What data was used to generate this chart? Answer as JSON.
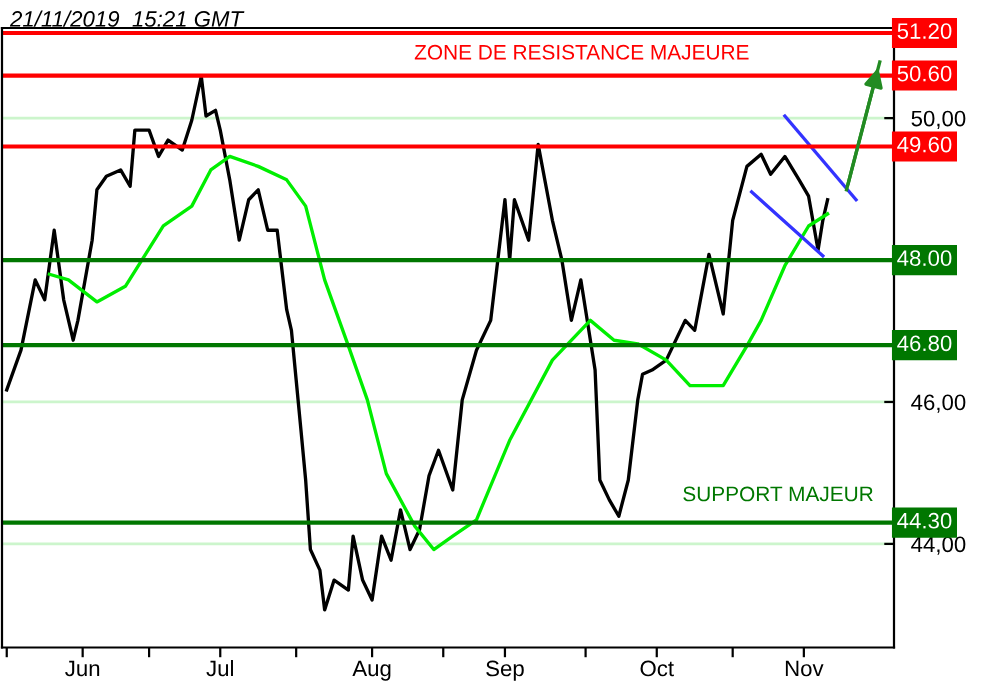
{
  "chart_data": {
    "type": "line",
    "title": "21/11/2019  15:21 GMT",
    "x": [
      "2019-06-01",
      "2019-06-04",
      "2019-06-07",
      "2019-06-09",
      "2019-06-11",
      "2019-06-13",
      "2019-06-15",
      "2019-06-16",
      "2019-06-19",
      "2019-06-20",
      "2019-06-22",
      "2019-06-25",
      "2019-06-27",
      "2019-06-28",
      "2019-07-01",
      "2019-07-03",
      "2019-07-05",
      "2019-07-08",
      "2019-07-10",
      "2019-07-12",
      "2019-07-13",
      "2019-07-15",
      "2019-07-16",
      "2019-07-18",
      "2019-07-20",
      "2019-07-22",
      "2019-07-24",
      "2019-07-26",
      "2019-07-28",
      "2019-07-30",
      "2019-07-31",
      "2019-08-01",
      "2019-08-02",
      "2019-08-03",
      "2019-08-04",
      "2019-08-06",
      "2019-08-07",
      "2019-08-09",
      "2019-08-12",
      "2019-08-13",
      "2019-08-15",
      "2019-08-17",
      "2019-08-19",
      "2019-08-21",
      "2019-08-23",
      "2019-08-25",
      "2019-08-27",
      "2019-08-29",
      "2019-08-31",
      "2019-09-03",
      "2019-09-05",
      "2019-09-08",
      "2019-09-11",
      "2019-09-14",
      "2019-09-15",
      "2019-09-16",
      "2019-09-19",
      "2019-09-21",
      "2019-09-24",
      "2019-09-26",
      "2019-09-28",
      "2019-09-30",
      "2019-10-03",
      "2019-10-04",
      "2019-10-06",
      "2019-10-08",
      "2019-10-10",
      "2019-10-12",
      "2019-10-13",
      "2019-10-15",
      "2019-10-18",
      "2019-10-22",
      "2019-10-24",
      "2019-10-27",
      "2019-10-30",
      "2019-11-01",
      "2019-11-04",
      "2019-11-07",
      "2019-11-09",
      "2019-11-12",
      "2019-11-15",
      "2019-11-17",
      "2019-11-19",
      "2019-11-20",
      "2019-11-21"
    ],
    "series": [
      {
        "color": "#000000",
        "values": [
          46.17,
          46.73,
          47.72,
          47.44,
          48.42,
          47.44,
          46.87,
          47.15,
          48.28,
          48.99,
          49.18,
          49.27,
          49.04,
          49.83,
          49.83,
          49.46,
          49.69,
          49.55,
          49.97,
          50.59,
          50.03,
          50.11,
          49.83,
          49.13,
          48.28,
          48.85,
          48.99,
          48.42,
          48.42,
          47.3,
          47.01,
          46.31,
          45.61,
          44.9,
          43.92,
          43.63,
          43.07,
          43.49,
          43.35,
          44.11,
          43.49,
          43.21,
          44.11,
          43.77,
          44.48,
          43.92,
          44.2,
          44.96,
          45.32,
          44.76,
          46.03,
          46.73,
          47.15,
          48.85,
          48.0,
          48.85,
          48.28,
          49.63,
          48.56,
          48.0,
          47.15,
          47.72,
          46.45,
          44.9,
          44.62,
          44.39,
          44.9,
          46.03,
          46.39,
          46.45,
          46.59,
          47.15,
          47.01,
          48.08,
          47.24,
          48.56,
          49.32,
          49.49,
          49.21,
          49.46,
          49.13,
          48.9,
          48.14,
          48.56,
          48.85
        ]
      },
      {
        "color": "#00ee00",
        "x": [
          "2019-06-10",
          "2019-06-14",
          "2019-06-20",
          "2019-06-26",
          "2019-07-04",
          "2019-07-10",
          "2019-07-14",
          "2019-07-18",
          "2019-07-24",
          "2019-07-30",
          "2019-08-03",
          "2019-08-07",
          "2019-08-12",
          "2019-08-16",
          "2019-08-20",
          "2019-08-26",
          "2019-08-30",
          "2019-09-03",
          "2019-09-08",
          "2019-09-15",
          "2019-09-24",
          "2019-10-02",
          "2019-10-07",
          "2019-10-12",
          "2019-10-18",
          "2019-10-23",
          "2019-10-30",
          "2019-11-04",
          "2019-11-07",
          "2019-11-12",
          "2019-11-17",
          "2019-11-21"
        ],
        "values": [
          47.8,
          47.72,
          47.41,
          47.63,
          48.48,
          48.76,
          49.27,
          49.46,
          49.32,
          49.13,
          48.76,
          47.72,
          46.79,
          46.03,
          44.99,
          44.25,
          43.92,
          44.11,
          44.34,
          45.46,
          46.59,
          47.15,
          46.87,
          46.82,
          46.59,
          46.23,
          46.23,
          46.79,
          47.15,
          47.92,
          48.48,
          48.65
        ]
      },
      {
        "color": "#3333ff",
        "x": [
          "2019-11-12",
          "2019-11-27"
        ],
        "values": [
          50.03,
          48.85
        ]
      },
      {
        "color": "#3333ff",
        "x": [
          "2019-11-05",
          "2019-11-20"
        ],
        "values": [
          48.96,
          48.06
        ]
      },
      {
        "color": "#228b22",
        "x": [
          "2019-11-25",
          "2019-12-02"
        ],
        "values": [
          48.99,
          50.79
        ]
      }
    ],
    "xlim": [
      "2019-05-31",
      "2019-12-05"
    ],
    "xticks": [
      {
        "value": "2019-06-01",
        "label": null
      },
      {
        "value": "2019-07-01",
        "label": null
      },
      {
        "value": "2019-08-01",
        "label": null
      },
      {
        "value": "2019-09-01",
        "label": null
      },
      {
        "value": "2019-10-01",
        "label": null
      },
      {
        "value": "2019-11-01",
        "label": null
      },
      {
        "value": "2019-06-17",
        "label": "Jun"
      },
      {
        "value": "2019-07-16",
        "label": "Jul"
      },
      {
        "value": "2019-08-17",
        "label": "Aug"
      },
      {
        "value": "2019-09-14",
        "label": "Sep"
      },
      {
        "value": "2019-10-16",
        "label": "Oct"
      },
      {
        "value": "2019-11-16",
        "label": "Nov"
      }
    ],
    "ylim": [
      42.54,
      51.27
    ],
    "yticks": [
      {
        "value": 44,
        "label": "44,00"
      },
      {
        "value": 46,
        "label": "46,00"
      },
      {
        "value": 48,
        "label": null
      },
      {
        "value": 50,
        "label": "50,00"
      }
    ],
    "grid": "y",
    "ref_lines": [
      {
        "axis": "y",
        "value": 51.2,
        "label": "51.20",
        "color": "#ff0000"
      },
      {
        "axis": "y",
        "value": 50.6,
        "label": "50.60",
        "color": "#ff0000"
      },
      {
        "axis": "y",
        "value": 49.6,
        "label": "49.60",
        "color": "#ff0000"
      },
      {
        "axis": "y",
        "value": 48.0,
        "label": "48.00",
        "color": "#007700"
      },
      {
        "axis": "y",
        "value": 46.8,
        "label": "46.80",
        "color": "#007700"
      },
      {
        "axis": "y",
        "value": 44.3,
        "label": "44.30",
        "color": "#007700"
      }
    ],
    "annotations": [
      "ZONE DE RESISTANCE MAJEURE",
      "SUPPORT MAJEUR"
    ],
    "marker": "none",
    "line_style": "solid"
  }
}
